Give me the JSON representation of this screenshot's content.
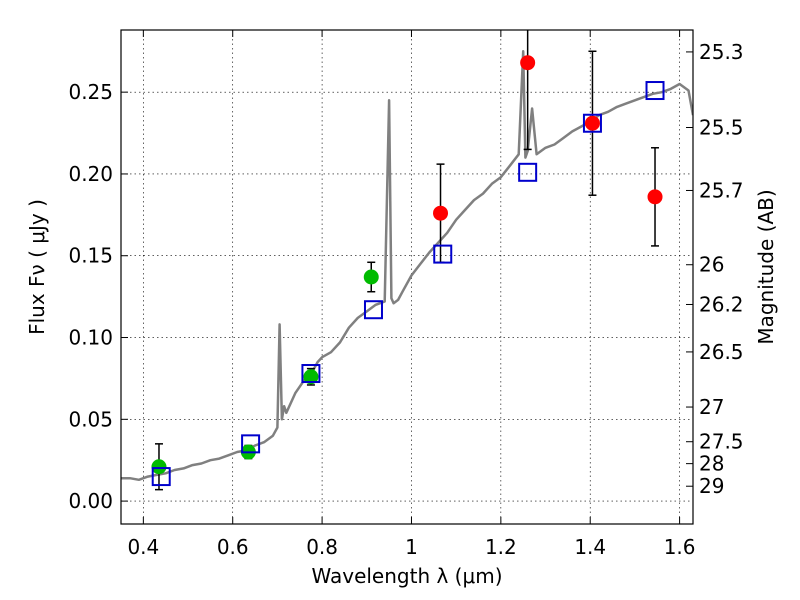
{
  "chart_data": {
    "type": "scatter",
    "xlabel": "Wavelength λ (μm)",
    "ylabel": "Flux Fν ( μJy )",
    "ylabel_right": "Magnitude (AB)",
    "xlim": [
      0.35,
      1.63
    ],
    "ylim": [
      -0.014,
      0.288
    ],
    "grid": true,
    "x_ticks": [
      0.4,
      0.6,
      0.8,
      1.0,
      1.2,
      1.4,
      1.6
    ],
    "x_tick_labels": [
      "0.4",
      "0.6",
      "0.8",
      "1",
      "1.2",
      "1.4",
      "1.6"
    ],
    "y_ticks": [
      0.0,
      0.05,
      0.1,
      0.15,
      0.2,
      0.25
    ],
    "y_tick_labels": [
      "0.00",
      "0.05",
      "0.10",
      "0.15",
      "0.20",
      "0.25"
    ],
    "right_axis_magnitudes": [
      {
        "label": "25.3",
        "flux": 0.2746
      },
      {
        "label": "25.5",
        "flux": 0.2284
      },
      {
        "label": "25.7",
        "flux": 0.1899
      },
      {
        "label": "26",
        "flux": 0.1445
      },
      {
        "label": "26.2",
        "flux": 0.1202
      },
      {
        "label": "26.5",
        "flux": 0.0912
      },
      {
        "label": "27",
        "flux": 0.0575
      },
      {
        "label": "27.5",
        "flux": 0.0363
      },
      {
        "label": "28",
        "flux": 0.0229
      },
      {
        "label": "29",
        "flux": 0.0091
      }
    ],
    "series": [
      {
        "kind": "line",
        "color": "#808080",
        "x": [
          0.35,
          0.37,
          0.39,
          0.41,
          0.43,
          0.45,
          0.47,
          0.49,
          0.51,
          0.53,
          0.55,
          0.57,
          0.59,
          0.61,
          0.63,
          0.65,
          0.67,
          0.69,
          0.7,
          0.705,
          0.71,
          0.715,
          0.72,
          0.73,
          0.74,
          0.75,
          0.76,
          0.77,
          0.78,
          0.79,
          0.8,
          0.82,
          0.84,
          0.86,
          0.88,
          0.9,
          0.92,
          0.94,
          0.95,
          0.955,
          0.96,
          0.97,
          0.98,
          1.0,
          1.02,
          1.04,
          1.06,
          1.08,
          1.1,
          1.12,
          1.14,
          1.16,
          1.18,
          1.2,
          1.22,
          1.24,
          1.25,
          1.255,
          1.26,
          1.27,
          1.28,
          1.3,
          1.32,
          1.34,
          1.36,
          1.38,
          1.4,
          1.42,
          1.44,
          1.46,
          1.48,
          1.5,
          1.52,
          1.54,
          1.56,
          1.58,
          1.6,
          1.62,
          1.63
        ],
        "y": [
          0.014,
          0.014,
          0.013,
          0.015,
          0.016,
          0.017,
          0.019,
          0.02,
          0.022,
          0.023,
          0.025,
          0.026,
          0.028,
          0.03,
          0.031,
          0.034,
          0.036,
          0.04,
          0.045,
          0.108,
          0.05,
          0.058,
          0.054,
          0.06,
          0.066,
          0.07,
          0.074,
          0.077,
          0.08,
          0.085,
          0.088,
          0.091,
          0.097,
          0.106,
          0.112,
          0.116,
          0.12,
          0.122,
          0.245,
          0.124,
          0.121,
          0.123,
          0.128,
          0.138,
          0.145,
          0.152,
          0.158,
          0.164,
          0.172,
          0.178,
          0.184,
          0.188,
          0.194,
          0.198,
          0.205,
          0.212,
          0.275,
          0.21,
          0.214,
          0.24,
          0.212,
          0.216,
          0.218,
          0.222,
          0.226,
          0.229,
          0.232,
          0.236,
          0.238,
          0.241,
          0.243,
          0.245,
          0.247,
          0.249,
          0.25,
          0.252,
          0.255,
          0.251,
          0.236
        ]
      },
      {
        "kind": "scatter",
        "marker": "circle",
        "color": "#00bb00",
        "x": [
          0.435,
          0.635,
          0.775,
          0.91
        ],
        "y": [
          0.021,
          0.03,
          0.076,
          0.137
        ],
        "yerr": [
          0.014,
          0.004,
          0.005,
          0.009
        ]
      },
      {
        "kind": "scatter",
        "marker": "circle",
        "color": "#ff0000",
        "x": [
          1.065,
          1.26,
          1.405,
          1.545
        ],
        "y": [
          0.176,
          0.268,
          0.231,
          0.186
        ],
        "yerr": [
          0.03,
          0.053,
          0.044,
          0.03
        ]
      },
      {
        "kind": "scatter",
        "marker": "open-square",
        "color": "#0000cc",
        "x": [
          0.44,
          0.64,
          0.775,
          0.915,
          1.07,
          1.26,
          1.405,
          1.545
        ],
        "y": [
          0.015,
          0.035,
          0.078,
          0.117,
          0.151,
          0.201,
          0.231,
          0.251
        ]
      }
    ]
  }
}
